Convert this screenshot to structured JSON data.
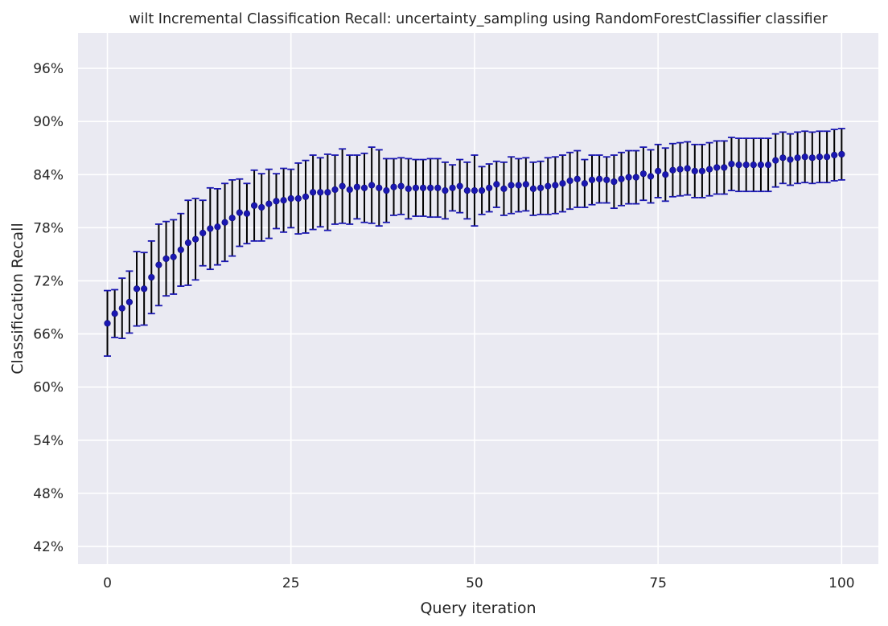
{
  "chart_data": {
    "type": "scatter",
    "title": "wilt Incremental Classification Recall: uncertainty_sampling using RandomForestClassifier classifier",
    "xlabel": "Query iteration",
    "ylabel": "Classification Recall",
    "xlim": [
      -4,
      105
    ],
    "ylim": [
      0.4,
      1.0
    ],
    "xticks": [
      0,
      25,
      50,
      75,
      100
    ],
    "xtick_labels": [
      "0",
      "25",
      "50",
      "75",
      "100"
    ],
    "yticks": [
      0.42,
      0.48,
      0.54,
      0.6,
      0.66,
      0.72,
      0.78,
      0.84,
      0.9,
      0.96
    ],
    "ytick_labels": [
      "42%",
      "48%",
      "54%",
      "60%",
      "66%",
      "72%",
      "78%",
      "84%",
      "90%",
      "96%"
    ],
    "grid": true,
    "legend": "none",
    "series": [
      {
        "x": [
          0,
          1,
          2,
          3,
          4,
          5,
          6,
          7,
          8,
          9,
          10,
          11,
          12,
          13,
          14,
          15,
          16,
          17,
          18,
          19,
          20,
          21,
          22,
          23,
          24,
          25,
          26,
          27,
          28,
          29,
          30,
          31,
          32,
          33,
          34,
          35,
          36,
          37,
          38,
          39,
          40,
          41,
          42,
          43,
          44,
          45,
          46,
          47,
          48,
          49,
          50,
          51,
          52,
          53,
          54,
          55,
          56,
          57,
          58,
          59,
          60,
          61,
          62,
          63,
          64,
          65,
          66,
          67,
          68,
          69,
          70,
          71,
          72,
          73,
          74,
          75,
          76,
          77,
          78,
          79,
          80,
          81,
          82,
          83,
          84,
          85,
          86,
          87,
          88,
          89,
          90,
          91,
          92,
          93,
          94,
          95,
          96,
          97,
          98,
          99,
          100
        ],
        "y": [
          0.672,
          0.683,
          0.689,
          0.696,
          0.711,
          0.711,
          0.724,
          0.738,
          0.745,
          0.747,
          0.755,
          0.763,
          0.767,
          0.774,
          0.779,
          0.781,
          0.786,
          0.791,
          0.797,
          0.796,
          0.805,
          0.803,
          0.807,
          0.81,
          0.811,
          0.813,
          0.813,
          0.815,
          0.82,
          0.82,
          0.82,
          0.823,
          0.827,
          0.823,
          0.826,
          0.825,
          0.828,
          0.825,
          0.822,
          0.826,
          0.827,
          0.824,
          0.825,
          0.825,
          0.825,
          0.825,
          0.822,
          0.825,
          0.827,
          0.822,
          0.822,
          0.822,
          0.825,
          0.829,
          0.824,
          0.828,
          0.828,
          0.829,
          0.824,
          0.825,
          0.827,
          0.828,
          0.83,
          0.833,
          0.835,
          0.83,
          0.834,
          0.835,
          0.834,
          0.832,
          0.835,
          0.837,
          0.837,
          0.841,
          0.838,
          0.844,
          0.84,
          0.845,
          0.846,
          0.847,
          0.844,
          0.844,
          0.846,
          0.848,
          0.848,
          0.852,
          0.851,
          0.851,
          0.851,
          0.851,
          0.851,
          0.856,
          0.859,
          0.857,
          0.859,
          0.86,
          0.859,
          0.86,
          0.86,
          0.862,
          0.863
        ],
        "yerr": [
          0.037,
          0.027,
          0.034,
          0.035,
          0.042,
          0.041,
          0.041,
          0.046,
          0.042,
          0.042,
          0.041,
          0.048,
          0.046,
          0.037,
          0.046,
          0.043,
          0.044,
          0.043,
          0.038,
          0.034,
          0.04,
          0.038,
          0.039,
          0.031,
          0.036,
          0.033,
          0.04,
          0.041,
          0.042,
          0.039,
          0.043,
          0.039,
          0.042,
          0.039,
          0.036,
          0.039,
          0.043,
          0.043,
          0.036,
          0.032,
          0.032,
          0.034,
          0.032,
          0.032,
          0.033,
          0.033,
          0.032,
          0.026,
          0.03,
          0.032,
          0.04,
          0.027,
          0.027,
          0.026,
          0.03,
          0.032,
          0.03,
          0.03,
          0.03,
          0.03,
          0.032,
          0.032,
          0.032,
          0.032,
          0.032,
          0.027,
          0.028,
          0.027,
          0.026,
          0.03,
          0.03,
          0.03,
          0.03,
          0.03,
          0.03,
          0.03,
          0.03,
          0.03,
          0.03,
          0.03,
          0.03,
          0.03,
          0.03,
          0.03,
          0.03,
          0.03,
          0.03,
          0.03,
          0.03,
          0.03,
          0.03,
          0.03,
          0.029,
          0.029,
          0.029,
          0.029,
          0.029,
          0.029,
          0.029,
          0.029,
          0.029
        ],
        "color": "#1a17b3",
        "errorbar_color": "#000000",
        "cap_color": "#1a17b3"
      }
    ]
  }
}
